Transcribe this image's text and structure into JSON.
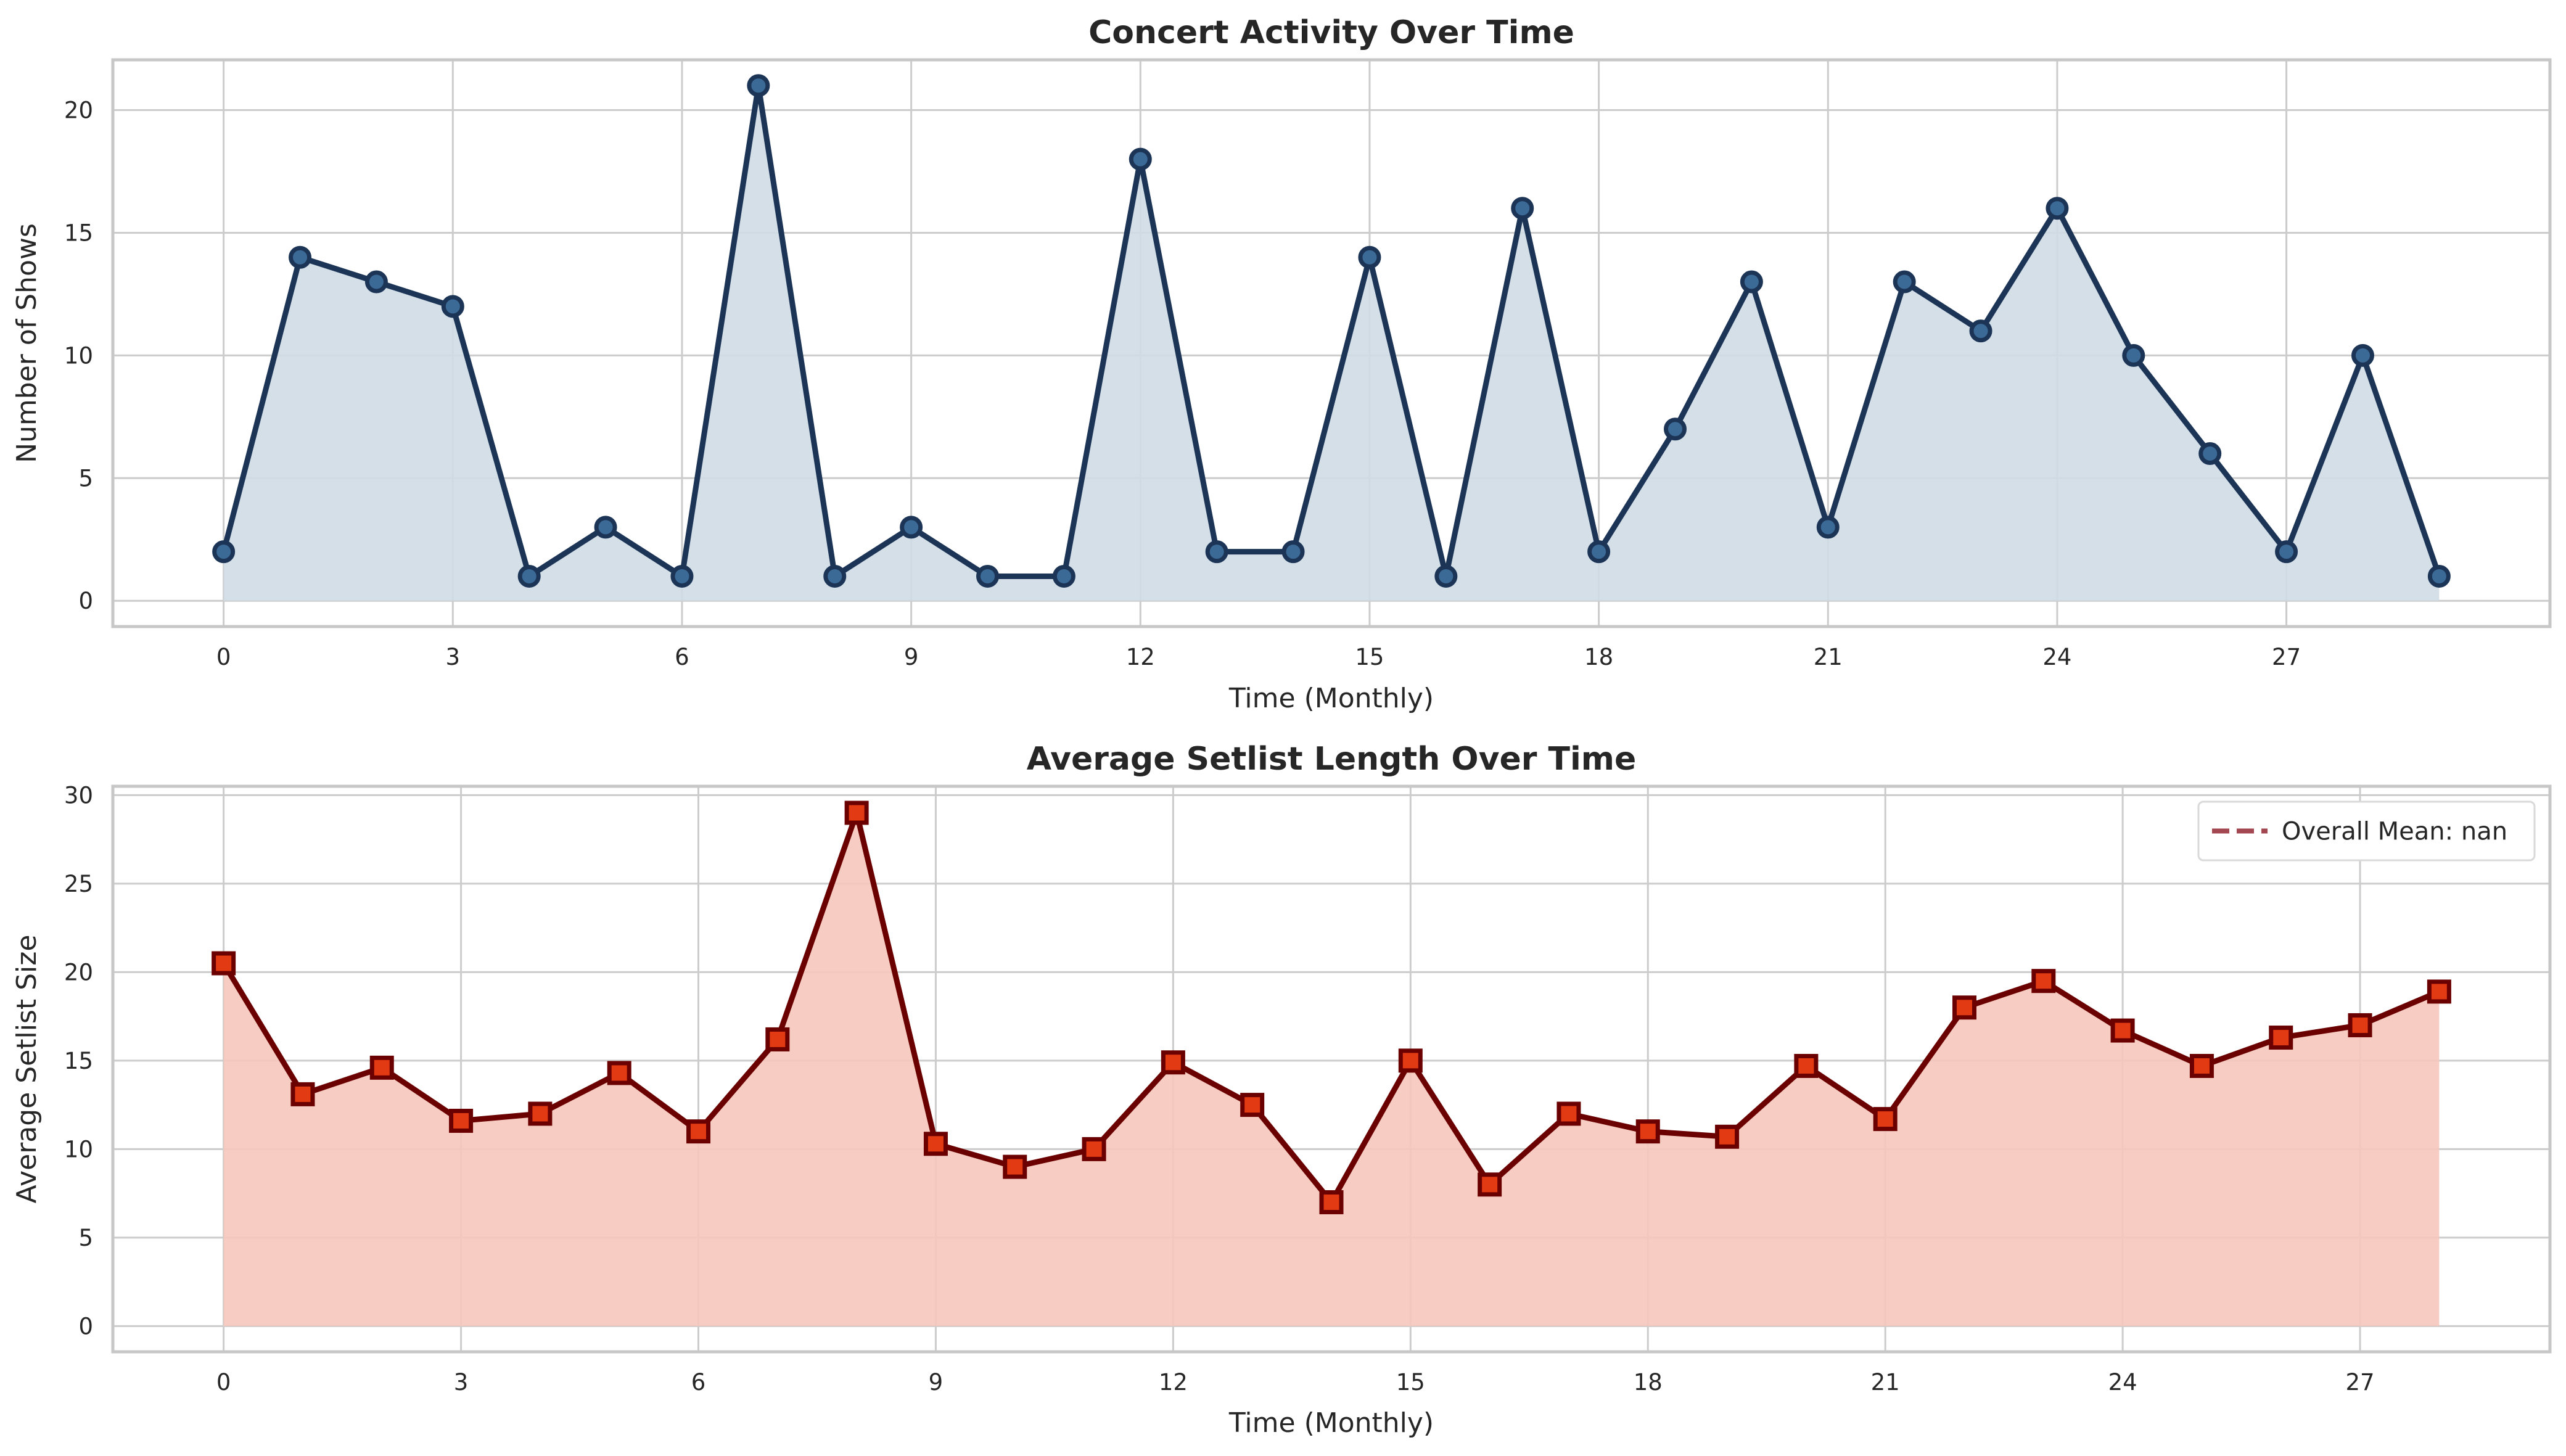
{
  "chart_data": [
    {
      "type": "area",
      "title": "Concert Activity Over Time",
      "xlabel": "Time (Monthly)",
      "ylabel": "Number of Shows",
      "x": [
        0,
        1,
        2,
        3,
        4,
        5,
        6,
        7,
        8,
        9,
        10,
        11,
        12,
        13,
        14,
        15,
        16,
        17,
        18,
        19,
        20,
        21,
        22,
        23,
        24,
        25,
        26,
        27,
        28,
        29
      ],
      "values": [
        2,
        14,
        13,
        12,
        1,
        3,
        1,
        21,
        1,
        3,
        1,
        1,
        18,
        2,
        2,
        14,
        1,
        16,
        2,
        7,
        13,
        3,
        13,
        11,
        16,
        10,
        6,
        2,
        10,
        1
      ],
      "xticks": [
        0,
        3,
        6,
        9,
        12,
        15,
        18,
        21,
        24,
        27
      ],
      "yticks": [
        0,
        5,
        10,
        15,
        20
      ],
      "xlim": [
        -1.45,
        30.45
      ],
      "ylim": [
        -1.05,
        22.05
      ],
      "marker": "circle",
      "grid": true,
      "colors": {
        "line": "#1c3557",
        "marker_face": "#3c6a97",
        "fill": "#cfdce6"
      }
    },
    {
      "type": "area",
      "title": "Average Setlist Length Over Time",
      "xlabel": "Time (Monthly)",
      "ylabel": "Average Setlist Size",
      "x": [
        0,
        1,
        2,
        3,
        4,
        5,
        6,
        7,
        8,
        9,
        10,
        11,
        12,
        13,
        14,
        15,
        16,
        17,
        18,
        19,
        20,
        21,
        22,
        23,
        24,
        25,
        26,
        27,
        28
      ],
      "values": [
        20.5,
        13.1,
        14.6,
        11.6,
        12.0,
        14.3,
        11.0,
        16.2,
        29.0,
        10.3,
        9.0,
        10.0,
        14.9,
        12.5,
        7.0,
        15.0,
        8.0,
        12.0,
        11.0,
        10.7,
        14.7,
        11.7,
        18.0,
        19.5,
        16.7,
        14.7,
        16.3,
        17.0,
        18.9
      ],
      "xticks": [
        0,
        3,
        6,
        9,
        12,
        15,
        18,
        21,
        24,
        27
      ],
      "yticks": [
        0,
        5,
        10,
        15,
        20,
        25,
        30
      ],
      "xlim": [
        -1.4,
        29.4
      ],
      "ylim": [
        -1.45,
        30.5
      ],
      "marker": "square",
      "grid": true,
      "legend": {
        "position": "top-right",
        "entries": [
          "Overall Mean: nan"
        ]
      },
      "colors": {
        "line": "#6b0000",
        "marker_face": "#e23a12",
        "fill": "#f5c6bd",
        "legend_line": "#a34750"
      }
    }
  ]
}
